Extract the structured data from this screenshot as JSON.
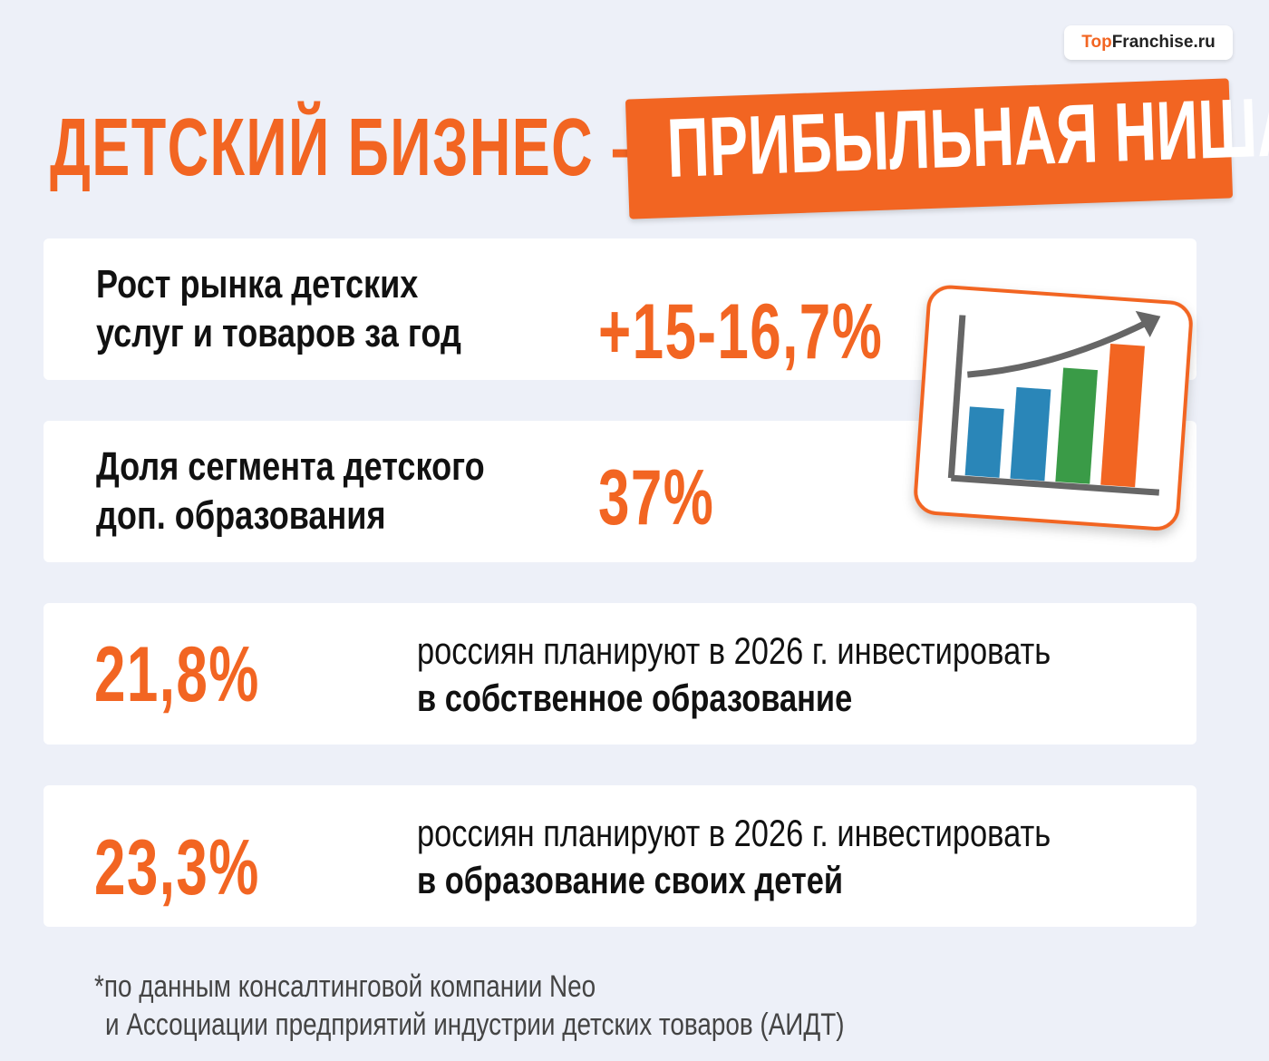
{
  "logo": {
    "accent": "Top",
    "rest": "Franchise.ru"
  },
  "title": {
    "lead": "ДЕТСКИЙ БИЗНЕС –",
    "highlight": "ПРИБЫЛЬНАЯ НИША"
  },
  "cards": [
    {
      "label": [
        "Рост рынка детских",
        "услуг и товаров за год"
      ],
      "value": "+15-16,7%"
    },
    {
      "label": [
        "Доля сегмента детского",
        "доп. образования"
      ],
      "value": "37%"
    },
    {
      "value": "21,8%",
      "text": "россиян планируют в 2026 г. инвестировать",
      "emphasis": "в собственное образование"
    },
    {
      "value": "23,3%",
      "text": "россиян планируют в 2026 г. инвестировать",
      "emphasis": "в образование своих детей"
    }
  ],
  "footnote": [
    "*по данным консалтинговой компании Neo",
    "и Ассоциации предприятий индустрии детских товаров (АИДТ)"
  ]
}
